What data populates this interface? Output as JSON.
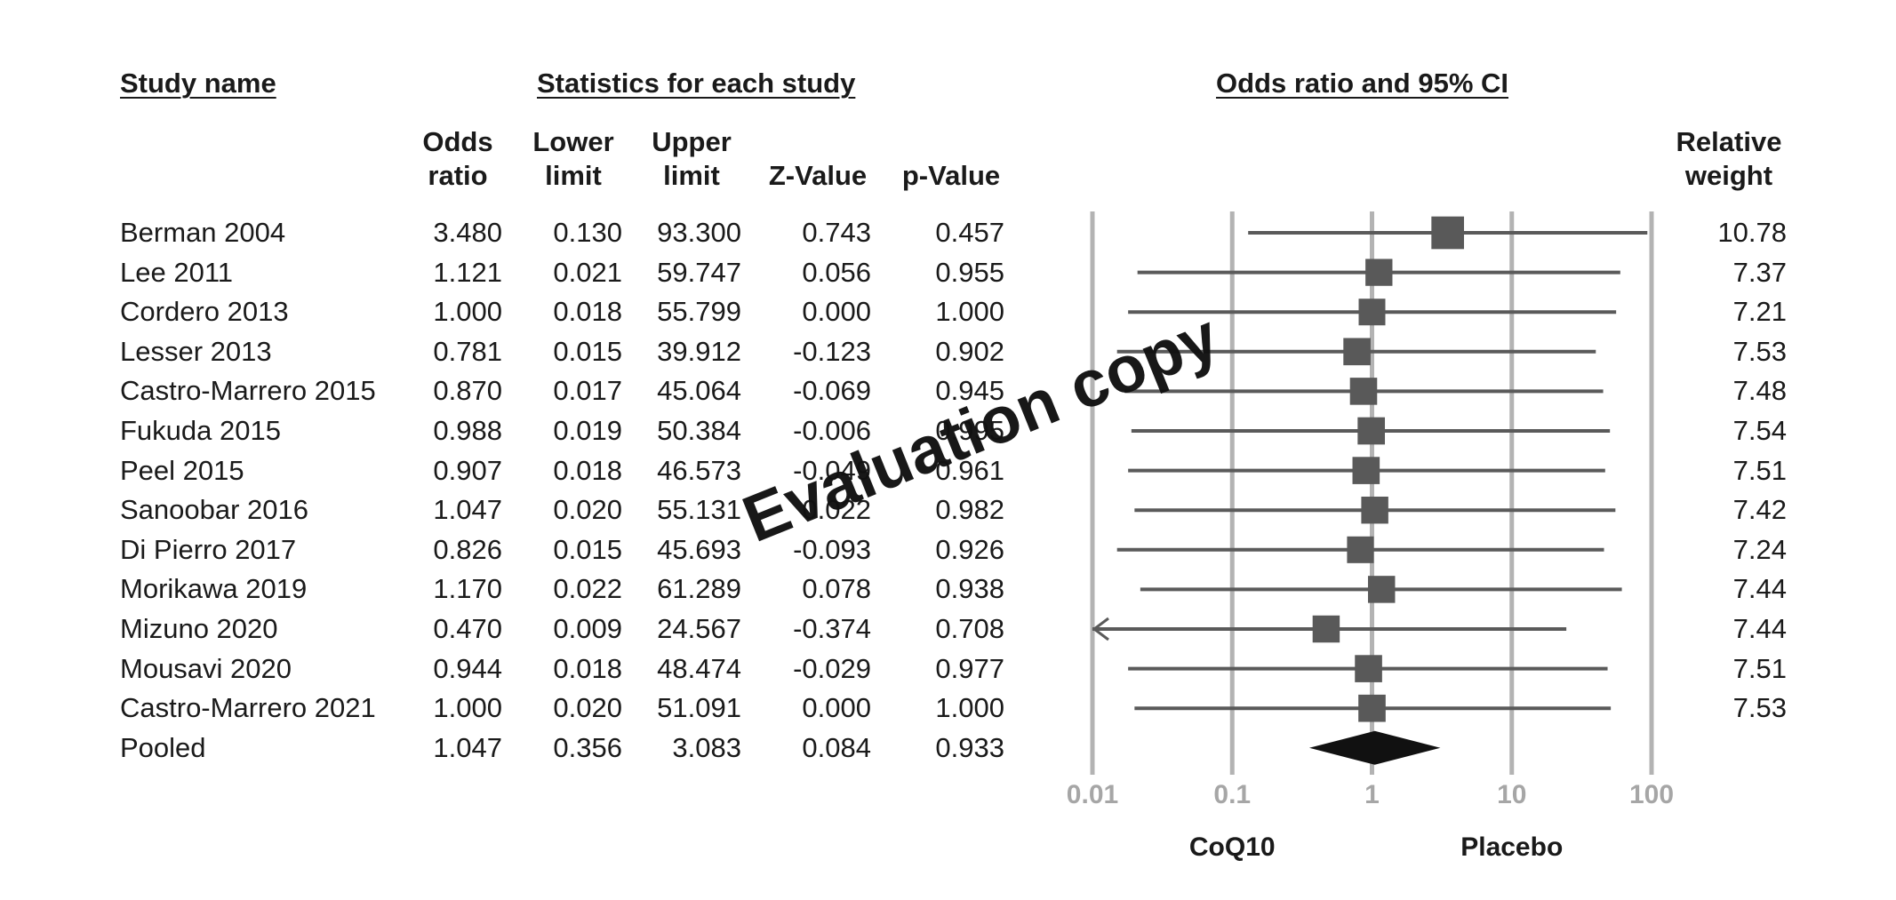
{
  "headers": {
    "study_name": "Study name",
    "statistics": "Statistics for each study",
    "plot": "Odds ratio and 95% CI"
  },
  "columns": {
    "odds_ratio": [
      "Odds",
      "ratio"
    ],
    "lower_limit": [
      "Lower",
      "limit"
    ],
    "upper_limit": [
      "Upper",
      "limit"
    ],
    "z_value": "Z-Value",
    "p_value": "p-Value",
    "relative_weight": [
      "Relative",
      "weight"
    ]
  },
  "rows": [
    {
      "study": "Berman 2004",
      "or": "3.480",
      "lower": "0.130",
      "upper": "93.300",
      "z": "0.743",
      "p": "0.457",
      "weight": "10.78"
    },
    {
      "study": "Lee 2011",
      "or": "1.121",
      "lower": "0.021",
      "upper": "59.747",
      "z": "0.056",
      "p": "0.955",
      "weight": "7.37"
    },
    {
      "study": "Cordero 2013",
      "or": "1.000",
      "lower": "0.018",
      "upper": "55.799",
      "z": "0.000",
      "p": "1.000",
      "weight": "7.21"
    },
    {
      "study": "Lesser 2013",
      "or": "0.781",
      "lower": "0.015",
      "upper": "39.912",
      "z": "-0.123",
      "p": "0.902",
      "weight": "7.53"
    },
    {
      "study": "Castro-Marrero 2015",
      "or": "0.870",
      "lower": "0.017",
      "upper": "45.064",
      "z": "-0.069",
      "p": "0.945",
      "weight": "7.48"
    },
    {
      "study": "Fukuda 2015",
      "or": "0.988",
      "lower": "0.019",
      "upper": "50.384",
      "z": "-0.006",
      "p": "0.995",
      "weight": "7.54"
    },
    {
      "study": "Peel 2015",
      "or": "0.907",
      "lower": "0.018",
      "upper": "46.573",
      "z": "-0.049",
      "p": "0.961",
      "weight": "7.51"
    },
    {
      "study": "Sanoobar 2016",
      "or": "1.047",
      "lower": "0.020",
      "upper": "55.131",
      "z": "0.022",
      "p": "0.982",
      "weight": "7.42"
    },
    {
      "study": "Di Pierro 2017",
      "or": "0.826",
      "lower": "0.015",
      "upper": "45.693",
      "z": "-0.093",
      "p": "0.926",
      "weight": "7.24"
    },
    {
      "study": "Morikawa 2019",
      "or": "1.170",
      "lower": "0.022",
      "upper": "61.289",
      "z": "0.078",
      "p": "0.938",
      "weight": "7.44"
    },
    {
      "study": "Mizuno 2020",
      "or": "0.470",
      "lower": "0.009",
      "upper": "24.567",
      "z": "-0.374",
      "p": "0.708",
      "weight": "7.44"
    },
    {
      "study": "Mousavi 2020",
      "or": "0.944",
      "lower": "0.018",
      "upper": "48.474",
      "z": "-0.029",
      "p": "0.977",
      "weight": "7.51"
    },
    {
      "study": "Castro-Marrero 2021",
      "or": "1.000",
      "lower": "0.020",
      "upper": "51.091",
      "z": "0.000",
      "p": "1.000",
      "weight": "7.53"
    },
    {
      "study": "Pooled",
      "or": "1.047",
      "lower": "0.356",
      "upper": "3.083",
      "z": "0.084",
      "p": "0.933",
      "weight": ""
    }
  ],
  "chart_data": {
    "type": "forest",
    "x_scale": "log",
    "xlim": [
      0.01,
      100
    ],
    "ticks": [
      "0.01",
      "0.1",
      "1",
      "10",
      "100"
    ],
    "xlabel_left": "CoQ10",
    "xlabel_right": "Placebo",
    "grid": true,
    "series": [
      {
        "label": "Berman 2004",
        "or": 3.48,
        "lower": 0.13,
        "upper": 93.3,
        "weight": 10.78
      },
      {
        "label": "Lee 2011",
        "or": 1.121,
        "lower": 0.021,
        "upper": 59.747,
        "weight": 7.37
      },
      {
        "label": "Cordero 2013",
        "or": 1.0,
        "lower": 0.018,
        "upper": 55.799,
        "weight": 7.21
      },
      {
        "label": "Lesser 2013",
        "or": 0.781,
        "lower": 0.015,
        "upper": 39.912,
        "weight": 7.53
      },
      {
        "label": "Castro-Marrero 2015",
        "or": 0.87,
        "lower": 0.017,
        "upper": 45.064,
        "weight": 7.48
      },
      {
        "label": "Fukuda 2015",
        "or": 0.988,
        "lower": 0.019,
        "upper": 50.384,
        "weight": 7.54
      },
      {
        "label": "Peel 2015",
        "or": 0.907,
        "lower": 0.018,
        "upper": 46.573,
        "weight": 7.51
      },
      {
        "label": "Sanoobar 2016",
        "or": 1.047,
        "lower": 0.02,
        "upper": 55.131,
        "weight": 7.42
      },
      {
        "label": "Di Pierro 2017",
        "or": 0.826,
        "lower": 0.015,
        "upper": 45.693,
        "weight": 7.24
      },
      {
        "label": "Morikawa 2019",
        "or": 1.17,
        "lower": 0.022,
        "upper": 61.289,
        "weight": 7.44
      },
      {
        "label": "Mizuno 2020",
        "or": 0.47,
        "lower": 0.009,
        "upper": 24.567,
        "weight": 7.44
      },
      {
        "label": "Mousavi 2020",
        "or": 0.944,
        "lower": 0.018,
        "upper": 48.474,
        "weight": 7.51
      },
      {
        "label": "Castro-Marrero 2021",
        "or": 1.0,
        "lower": 0.02,
        "upper": 51.091,
        "weight": 7.53
      }
    ],
    "pooled": {
      "label": "Pooled",
      "or": 1.047,
      "lower": 0.356,
      "upper": 3.083
    }
  },
  "colors": {
    "marker": "#595959",
    "ci_line": "#5a5a5a",
    "gridline": "#b3b3b3",
    "tick_label": "#a6a6a6",
    "diamond": "#111111"
  },
  "watermark": "Evaluation copy"
}
